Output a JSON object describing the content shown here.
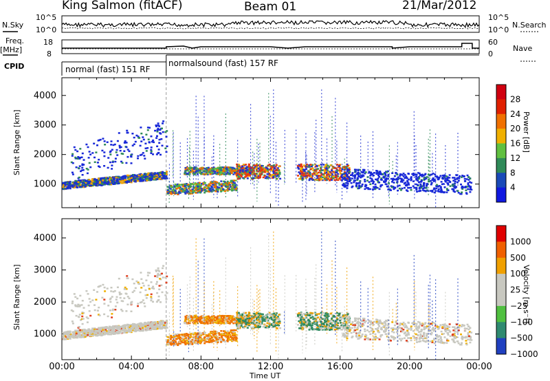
{
  "header": {
    "station": "King Salmon (fitACF)",
    "beam": "Beam 01",
    "date": "21/Mar/2012"
  },
  "top_panels": {
    "nsky_label": "N.Sky",
    "nsky_ticks": [
      "10^5",
      "10^0"
    ],
    "nsearch_label": "N.Search",
    "nsearch_ticks": [
      "10^5",
      "10^0"
    ],
    "freq_label_1": "Freq.",
    "freq_label_2": "[MHz]",
    "freq_ticks": [
      "18",
      "8"
    ],
    "nave_label": "Nave",
    "nave_ticks": [
      "60",
      "0"
    ],
    "cpid_label": "CPID",
    "cpid_segments": [
      {
        "label": "normal (fast) 151 RF",
        "start_hour": 0,
        "end_hour": 6
      },
      {
        "label": "normalsound (fast) 157 RF",
        "start_hour": 6,
        "end_hour": 24
      }
    ]
  },
  "chart_data": [
    {
      "type": "heatmap",
      "ylabel": "Slant Range [km]",
      "xlabel": "",
      "xlim": [
        0,
        24
      ],
      "ylim": [
        200,
        4600
      ],
      "x_ticks": [
        "00:00",
        "04:00",
        "08:00",
        "12:00",
        "16:00",
        "20:00",
        "00:00"
      ],
      "y_ticks": [
        "1000",
        "2000",
        "3000",
        "4000"
      ],
      "colorbar": {
        "label": "Power [dB]",
        "ticks": [
          "4",
          "8",
          "12",
          "16",
          "20",
          "24",
          "28"
        ],
        "colors": [
          "#1018e0",
          "#1a4ab8",
          "#2f8a58",
          "#60c040",
          "#f0b000",
          "#f07000",
          "#e02000",
          "#d00010"
        ]
      }
    },
    {
      "type": "heatmap",
      "ylabel": "Slant Range [km]",
      "xlabel": "Time UT",
      "xlim": [
        0,
        24
      ],
      "ylim": [
        200,
        4600
      ],
      "x_ticks": [
        "00:00",
        "04:00",
        "08:00",
        "12:00",
        "16:00",
        "20:00",
        "00:00"
      ],
      "y_ticks": [
        "1000",
        "2000",
        "3000",
        "4000"
      ],
      "colorbar": {
        "label": "Velocity [m s⁻¹]",
        "ticks": [
          "1000",
          "500",
          "100",
          "25",
          "−25",
          "−100",
          "−500",
          "−1000"
        ],
        "colors": [
          "#2040c0",
          "#2f8a70",
          "#50c040",
          "#c8c8c0",
          "#c8c8c0",
          "#f0a000",
          "#f06000",
          "#e00000"
        ]
      }
    }
  ]
}
